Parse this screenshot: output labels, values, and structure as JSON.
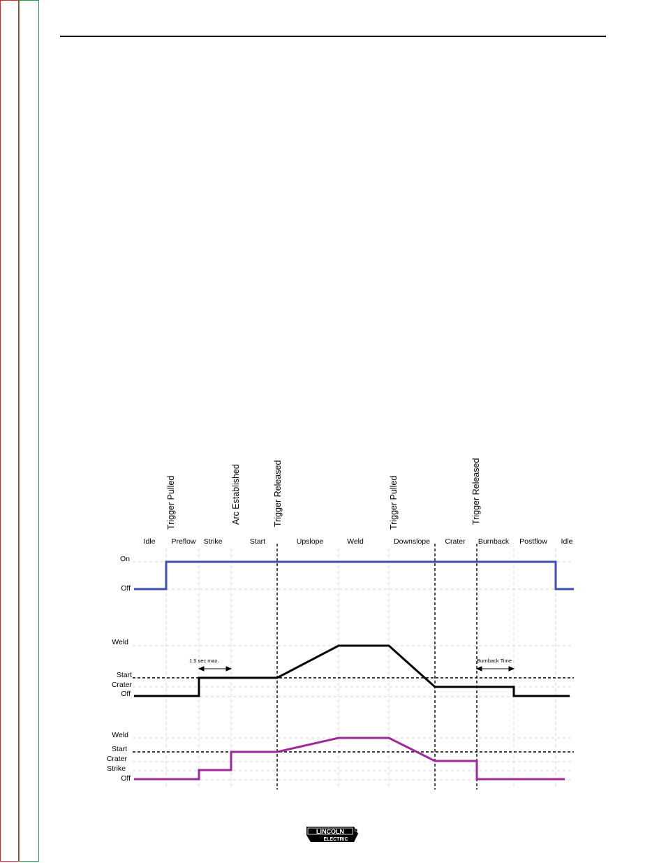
{
  "events": [
    "Trigger Pulled",
    "Arc  Established",
    "Trigger Released",
    "Trigger Pulled",
    "Trigger  Released"
  ],
  "phases": [
    "Idle",
    "Preflow",
    "Strike",
    "Start",
    "Upslope",
    "Weld",
    "Downslope",
    "Crater",
    "Burnback",
    "Postflow",
    "Idle"
  ],
  "trace1": {
    "levels": [
      "On",
      "Off"
    ],
    "color": "#3f4fb0"
  },
  "trace2": {
    "levels": [
      "Weld",
      "Start",
      "Crater",
      "Off"
    ],
    "color": "#000000",
    "annotations": [
      "1.5 sec max.",
      "Burnback Time"
    ]
  },
  "trace3": {
    "levels": [
      "Weld",
      "Start",
      "Crater",
      "Strike",
      "Off"
    ],
    "color": "#a0289b"
  },
  "logo": {
    "line1": "LINCOLN",
    "line2": "ELECTRIC"
  },
  "colors": {
    "left_edge_red": "#e4202a",
    "left_edge_green": "#1aa24b"
  }
}
